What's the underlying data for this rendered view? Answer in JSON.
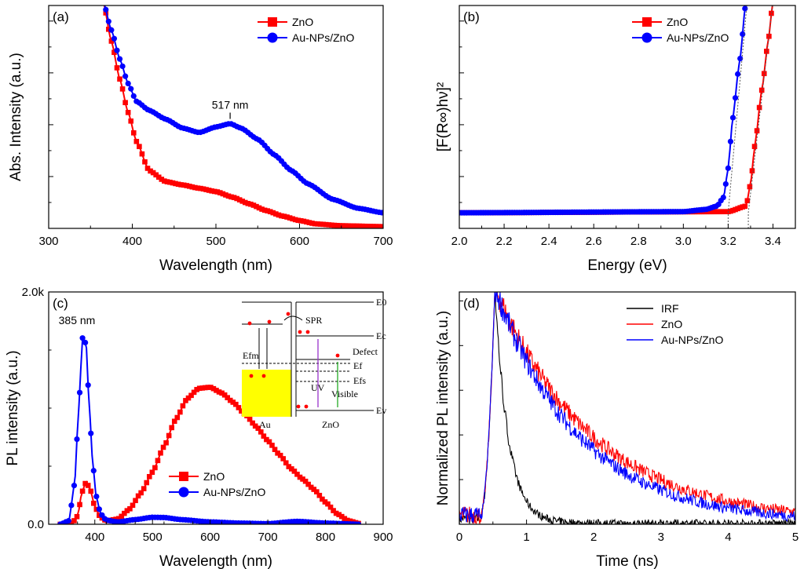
{
  "chart_data": [
    {
      "id": "a",
      "type": "line",
      "panel_label": "(a)",
      "xlabel": "Wavelength (nm)",
      "ylabel": "Abs. Intensity (a.u.)",
      "xlim": [
        300,
        700
      ],
      "ylim": [
        0,
        1
      ],
      "xticks": [
        300,
        400,
        500,
        600,
        700
      ],
      "xtick_labels": [
        "300",
        "400",
        "500",
        "600",
        "700"
      ],
      "annotation": "517 nm",
      "annotation_x": 517,
      "legend": [
        "ZnO",
        "Au-NPs/ZnO"
      ],
      "legend_position": "top-right",
      "series": [
        {
          "name": "ZnO",
          "color": "#ff0000",
          "marker": "square",
          "x": [
            365,
            375,
            385,
            395,
            405,
            420,
            440,
            460,
            480,
            500,
            520,
            540,
            560,
            580,
            600,
            620,
            650,
            700
          ],
          "y": [
            1.02,
            0.84,
            0.67,
            0.52,
            0.39,
            0.26,
            0.21,
            0.195,
            0.18,
            0.165,
            0.14,
            0.11,
            0.08,
            0.055,
            0.035,
            0.02,
            0.012,
            0.008
          ]
        },
        {
          "name": "Au-NPs/ZnO",
          "color": "#0000ff",
          "marker": "circle",
          "x": [
            365,
            375,
            385,
            395,
            405,
            420,
            440,
            460,
            480,
            500,
            517,
            530,
            550,
            570,
            590,
            610,
            640,
            670,
            700
          ],
          "y": [
            1.02,
            0.89,
            0.76,
            0.65,
            0.57,
            0.53,
            0.49,
            0.45,
            0.43,
            0.455,
            0.47,
            0.45,
            0.4,
            0.33,
            0.26,
            0.2,
            0.13,
            0.09,
            0.07
          ]
        }
      ]
    },
    {
      "id": "b",
      "type": "scatter",
      "panel_label": "(b)",
      "xlabel": "Energy (eV)",
      "ylabel": "[F(R∞)hν]²",
      "xlim": [
        2.0,
        3.5
      ],
      "ylim": [
        0,
        1
      ],
      "xticks": [
        2.0,
        2.2,
        2.4,
        2.6,
        2.8,
        3.0,
        3.2,
        3.4
      ],
      "xtick_labels": [
        "2.0",
        "2.2",
        "2.4",
        "2.6",
        "2.8",
        "3.0",
        "3.2",
        "3.4"
      ],
      "band_gap_intercepts": [
        3.2,
        3.29
      ],
      "legend": [
        "ZnO",
        "Au-NPs/ZnO"
      ],
      "legend_position": "top-right",
      "series": [
        {
          "name": "ZnO",
          "color": "#ff0000",
          "marker": "square",
          "range": [
            2.0,
            3.4
          ],
          "x": [
            2.0,
            3.2,
            3.28,
            3.3,
            3.32,
            3.35,
            3.38,
            3.4
          ],
          "y": [
            0.07,
            0.075,
            0.1,
            0.2,
            0.38,
            0.62,
            0.85,
            1.02
          ]
        },
        {
          "name": "Au-NPs/ZnO",
          "color": "#0000ff",
          "marker": "circle",
          "range": [
            2.0,
            3.28
          ],
          "x": [
            2.0,
            3.0,
            3.1,
            3.15,
            3.18,
            3.2,
            3.22,
            3.25,
            3.28
          ],
          "y": [
            0.07,
            0.075,
            0.085,
            0.1,
            0.14,
            0.27,
            0.49,
            0.74,
            1.02
          ]
        }
      ]
    },
    {
      "id": "c",
      "type": "line",
      "panel_label": "(c)",
      "xlabel": "Wavelength (nm)",
      "ylabel": "PL intensity (a.u.)",
      "xlim": [
        320,
        900
      ],
      "ylim": [
        0,
        2000
      ],
      "xticks": [
        400,
        500,
        600,
        700,
        800,
        900
      ],
      "xtick_labels": [
        "400",
        "500",
        "600",
        "700",
        "800",
        "900"
      ],
      "yticks": [
        0,
        2000
      ],
      "ytick_labels": [
        "0.0",
        "2.0k"
      ],
      "annotation": "385 nm",
      "legend": [
        "ZnO",
        "Au-NPs/ZnO"
      ],
      "legend_position": "bottom-center",
      "series": [
        {
          "name": "ZnO",
          "color": "#ff0000",
          "marker": "square",
          "x": [
            340,
            360,
            370,
            378,
            385,
            392,
            400,
            410,
            420,
            440,
            460,
            480,
            500,
            520,
            540,
            560,
            580,
            600,
            620,
            640,
            660,
            680,
            700,
            720,
            740,
            760,
            780,
            800,
            820,
            840,
            860
          ],
          "y": [
            0,
            5,
            70,
            280,
            365,
            300,
            150,
            60,
            30,
            45,
            130,
            270,
            450,
            670,
            900,
            1080,
            1170,
            1180,
            1130,
            1050,
            950,
            840,
            720,
            600,
            480,
            390,
            300,
            190,
            90,
            30,
            5
          ]
        },
        {
          "name": "Au-NPs/ZnO",
          "color": "#0000ff",
          "marker": "circle",
          "x": [
            340,
            355,
            365,
            372,
            379,
            385,
            390,
            396,
            402,
            410,
            420,
            440,
            470,
            500,
            520,
            550,
            600,
            650,
            700,
            750,
            800,
            860
          ],
          "y": [
            0,
            30,
            350,
            1000,
            1620,
            1550,
            1050,
            550,
            250,
            90,
            35,
            20,
            40,
            60,
            58,
            40,
            20,
            10,
            5,
            25,
            10,
            0
          ]
        }
      ],
      "inset": {
        "labels": {
          "e0": "E0",
          "ec": "Ec",
          "spr": "SPR",
          "defect": "Defect",
          "efm": "Efm",
          "ef": "Ef",
          "efs": "Efs",
          "uv": "UV",
          "visible": "Visible",
          "ev": "Ev",
          "au": "Au",
          "zno": "ZnO"
        },
        "metal_color": "#ffff00"
      }
    },
    {
      "id": "d",
      "type": "line",
      "panel_label": "(d)",
      "xlabel": "Time (ns)",
      "ylabel": "Normalized PL intensity (a.u.)",
      "xlim": [
        0,
        5
      ],
      "ylim": [
        0,
        1
      ],
      "xticks": [
        0,
        1,
        2,
        3,
        4,
        5
      ],
      "xtick_labels": [
        "0",
        "1",
        "2",
        "3",
        "4",
        "5"
      ],
      "legend": [
        "IRF",
        "ZnO",
        "Au-NPs/ZnO"
      ],
      "legend_position": "top-right",
      "series": [
        {
          "name": "IRF",
          "color": "#000000",
          "peak_time": 0.53,
          "decay_tau": 0.2,
          "baseline": 0.03
        },
        {
          "name": "ZnO",
          "color": "#ff0000",
          "peak_time": 0.53,
          "decay_tau": 1.45,
          "baseline": 0.05
        },
        {
          "name": "Au-NPs/ZnO",
          "color": "#0000ff",
          "peak_time": 0.53,
          "decay_tau": 1.25,
          "baseline": 0.05
        }
      ]
    }
  ]
}
